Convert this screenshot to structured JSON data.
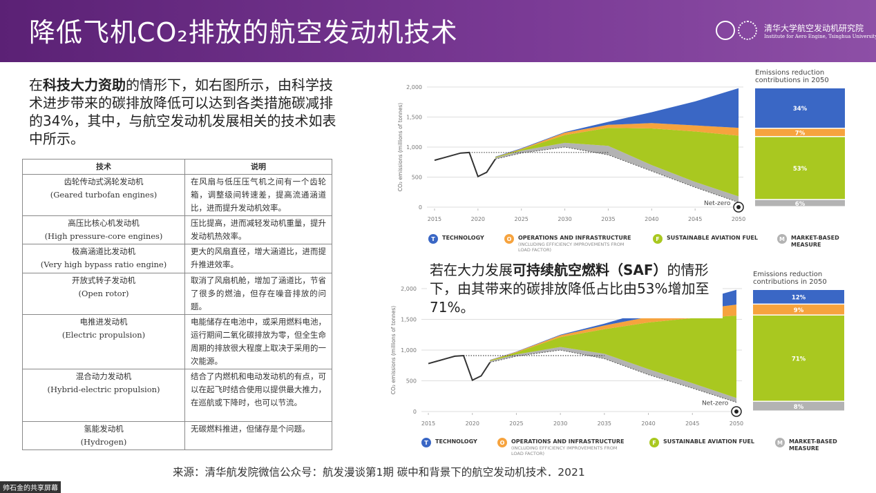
{
  "header": {
    "title": "降低飞机CO₂排放的航空发动机技术",
    "logo_zh": "清华大学航空发动机研究院",
    "logo_en": "Institute for Aero Engine, Tsinghua University"
  },
  "intro": {
    "before": "在",
    "emphasis": "科技大力资助",
    "after": "的情形下，如右图所示，由科学技术进步带来的碳排放降低可以达到各类措施碳减排的34%，其中，与航空发动机发展相关的技术如表中所示。"
  },
  "table": {
    "headers": [
      "技术",
      "说明"
    ],
    "rows": [
      {
        "tech": [
          "齿轮传动式涡轮发动机",
          "(Geared turbofan engines)"
        ],
        "desc": "在风扇与低压压气机之间有一个齿轮箱，调整级间转速差，提高流通涵道比，进而提升发动机效率。"
      },
      {
        "tech": [
          "高压比核心机发动机",
          "(High pressure-core engines)"
        ],
        "desc": "压比提高，进而减轻发动机重量，提升发动机热效率。"
      },
      {
        "tech": [
          "极高涵道比发动机",
          "(Very high bypass ratio engine)"
        ],
        "desc": "更大的风扇直径，增大涵道比，进而提升推进效率。"
      },
      {
        "tech": [
          "开放式转子发动机",
          "(Open rotor)"
        ],
        "desc": "取消了风扇机舱，增加了涵道比，节省了很多的燃油，但存在噪音排放的问题。"
      },
      {
        "tech": [
          "电推进发动机",
          "(Electric propulsion)"
        ],
        "desc": "电能储存在电池中，或采用燃料电池，运行期间二氧化碳排放为零，但全生命周期的排放很大程度上取决于采用的一次能源。"
      },
      {
        "tech": [
          "混合动力发动机",
          "(Hybrid-electric propulsion)"
        ],
        "desc": "结合了内燃机和电动发动机的有点，可以在起飞时结合使用以提供最大推力，在巡航或下降时，也可以节流。"
      },
      {
        "tech": [
          "氢能发动机",
          "(Hydrogen)"
        ],
        "desc": "无碳燃料推进，但储存是个问题。"
      }
    ]
  },
  "note": {
    "before": "若在大力发展",
    "emphasis": "可持续航空燃料（SAF）",
    "after": "的情形下，由其带来的碳排放降低占比由53%增加至71%。"
  },
  "source": "来源：清华航发院微信公众号：航发漫谈第1期 碳中和背景下的航空发动机技术．2021",
  "screen_share": "帅石金的共享屏幕",
  "chart_data": [
    {
      "type": "stacked-area",
      "y_label": "CO₂ emissions (millions of tonnes)",
      "xlim": [
        2014,
        2051
      ],
      "xticks": [
        2015,
        2020,
        2025,
        2030,
        2035,
        2040,
        2045,
        2050
      ],
      "ylim": [
        0,
        2000
      ],
      "yticks": [
        0,
        500,
        {
          "value": 1000,
          "label": "1,000"
        },
        {
          "value": 1500,
          "label": "1,500"
        },
        {
          "value": 2000,
          "label": "2,000"
        }
      ],
      "grid": true,
      "history": {
        "x": [
          2015,
          2016,
          2017,
          2018,
          2019,
          2020,
          2021,
          2022
        ],
        "values": [
          780,
          820,
          860,
          900,
          910,
          510,
          580,
          800
        ]
      },
      "reference": {
        "x": [
          2019,
          2035
        ],
        "values": [
          910,
          910
        ]
      },
      "net_zero": {
        "label": "Net-zero",
        "x": [
          2022,
          2025,
          2030,
          2035,
          2040,
          2045,
          2050
        ],
        "values": [
          800,
          900,
          1000,
          870,
          600,
          330,
          80
        ]
      },
      "x": [
        2022,
        2025,
        2030,
        2035,
        2040,
        2045,
        2050
      ],
      "series": [
        {
          "name": "MARKET-BASED MEASURE",
          "icon": "M",
          "color": "#b3b3b3",
          "values": [
            20,
            40,
            70,
            150,
            100,
            90,
            100
          ]
        },
        {
          "name": "SUSTAINABLE AVIATION FUEL",
          "icon": "F",
          "color": "#a9c820",
          "values": [
            10,
            20,
            130,
            300,
            610,
            840,
            1010
          ]
        },
        {
          "name": "OPERATIONS AND INFRASTRUCTURE",
          "note": "(INCLUDING EFFICIENCY IMPROVEMENTS FROM LOAD FACTOR)",
          "icon": "O",
          "color": "#f6a33e",
          "values": [
            5,
            10,
            40,
            50,
            90,
            100,
            130
          ]
        },
        {
          "name": "TECHNOLOGY",
          "icon": "T",
          "color": "#3a67c5",
          "values": [
            5,
            10,
            10,
            50,
            180,
            400,
            660
          ]
        }
      ],
      "contributions": {
        "title": "Emissions reduction contributions in 2050",
        "values": [
          6,
          53,
          7,
          34
        ],
        "value_labels": [
          "6%",
          "53%",
          "7%",
          "34%"
        ]
      }
    },
    {
      "type": "stacked-area",
      "y_label": "CO₂ emissions (millions of tonnes)",
      "xlim": [
        2014,
        2051
      ],
      "xticks": [
        2015,
        2020,
        2025,
        2030,
        2035,
        2040,
        2045,
        2050
      ],
      "ylim": [
        0,
        2000
      ],
      "yticks": [
        0,
        500,
        {
          "value": 1000,
          "label": "1,000"
        },
        {
          "value": 1500,
          "label": "1,500"
        },
        {
          "value": 2000,
          "label": "2,000"
        }
      ],
      "grid": true,
      "history": {
        "x": [
          2015,
          2016,
          2017,
          2018,
          2019,
          2020,
          2021,
          2022
        ],
        "values": [
          780,
          820,
          860,
          900,
          910,
          510,
          580,
          800
        ]
      },
      "reference": {
        "x": [
          2019,
          2035
        ],
        "values": [
          910,
          910
        ]
      },
      "net_zero": {
        "label": "Net-zero",
        "x": [
          2022,
          2025,
          2030,
          2035,
          2040,
          2045,
          2050
        ],
        "values": [
          800,
          900,
          1000,
          860,
          600,
          380,
          150
        ]
      },
      "x": [
        2022,
        2025,
        2030,
        2035,
        2040,
        2045,
        2050
      ],
      "series": [
        {
          "name": "MARKET-BASED MEASURE",
          "icon": "M",
          "color": "#b3b3b3",
          "values": [
            20,
            30,
            50,
            80,
            90,
            80,
            70
          ]
        },
        {
          "name": "SUSTAINABLE AVIATION FUEL",
          "icon": "F",
          "color": "#a9c820",
          "values": [
            10,
            30,
            160,
            400,
            760,
            1060,
            1340
          ]
        },
        {
          "name": "OPERATIONS AND INFRASTRUCTURE",
          "note": "(INCLUDING EFFICIENCY IMPROVEMENTS FROM LOAD FACTOR)",
          "icon": "O",
          "color": "#f6a33e",
          "values": [
            5,
            10,
            30,
            60,
            90,
            130,
            180
          ]
        },
        {
          "name": "TECHNOLOGY",
          "icon": "T",
          "color": "#3a67c5",
          "values": [
            5,
            5,
            10,
            30,
            100,
            130,
            240
          ]
        }
      ],
      "contributions": {
        "title": "Emissions reduction contributions in 2050",
        "values": [
          8,
          71,
          9,
          12
        ],
        "value_labels": [
          "8%",
          "71%",
          "9%",
          "12%"
        ]
      }
    }
  ]
}
